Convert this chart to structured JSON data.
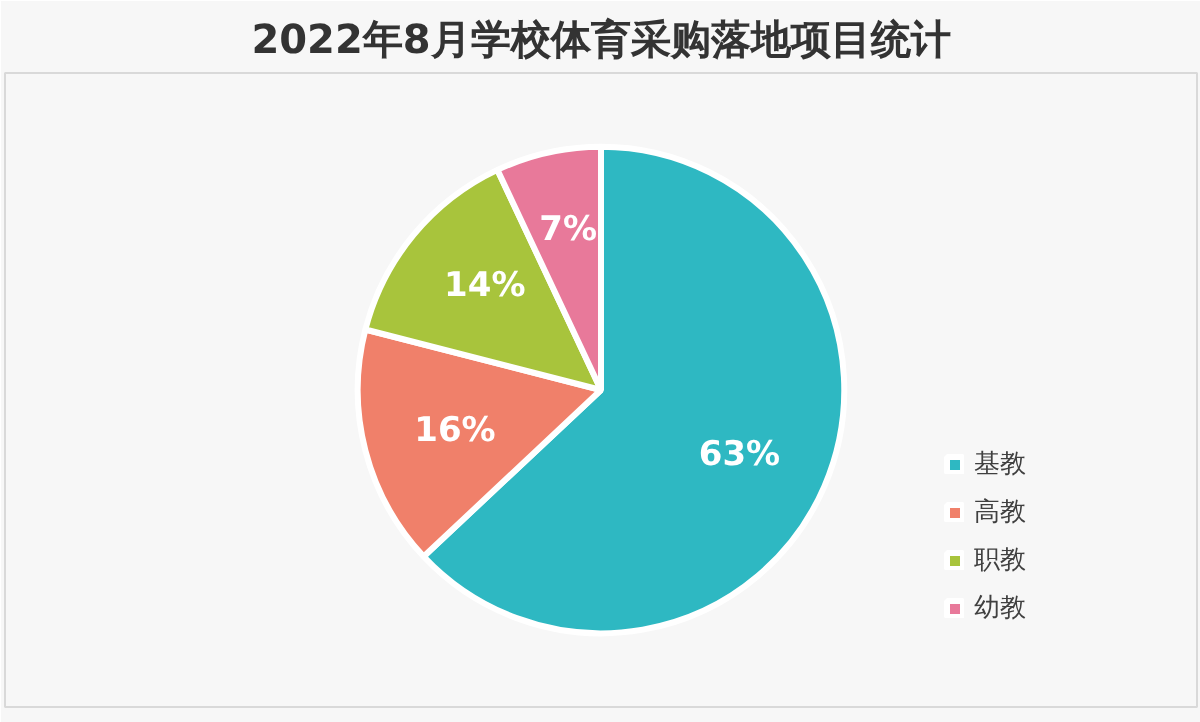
{
  "chart_data": {
    "type": "pie",
    "title": "2022年8月学校体育采购落地项目统计",
    "categories": [
      "基教",
      "高教",
      "职教",
      "幼教"
    ],
    "values": [
      63,
      16,
      14,
      7
    ],
    "colors": [
      "#2eb8c2",
      "#f0806a",
      "#a8c43c",
      "#e8799a"
    ],
    "value_labels": [
      "63%",
      "16%",
      "14%",
      "7%"
    ],
    "legend": "right"
  }
}
